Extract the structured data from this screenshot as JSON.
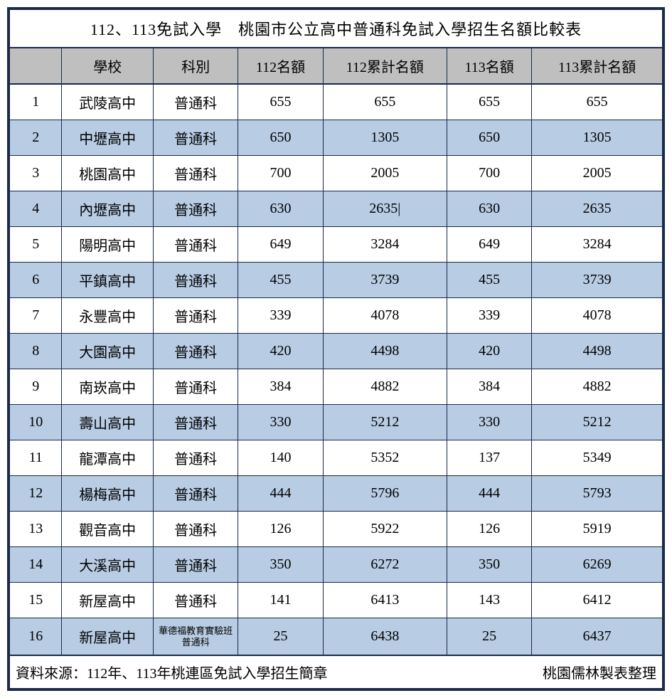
{
  "title": "112、113免試入學　桃園市公立高中普通科免試入學招生名額比較表",
  "columns": [
    "",
    "學校",
    "科別",
    "112名額",
    "112累計名額",
    "113名額",
    "113累計名額"
  ],
  "rows": [
    {
      "n": "1",
      "school": "武陵高中",
      "dept": "普通科",
      "q112": "655",
      "c112": "655",
      "q113": "655",
      "c113": "655"
    },
    {
      "n": "2",
      "school": "中壢高中",
      "dept": "普通科",
      "q112": "650",
      "c112": "1305",
      "q113": "650",
      "c113": "1305"
    },
    {
      "n": "3",
      "school": "桃園高中",
      "dept": "普通科",
      "q112": "700",
      "c112": "2005",
      "q113": "700",
      "c113": "2005"
    },
    {
      "n": "4",
      "school": "內壢高中",
      "dept": "普通科",
      "q112": "630",
      "c112": "2635|",
      "q113": "630",
      "c113": "2635"
    },
    {
      "n": "5",
      "school": "陽明高中",
      "dept": "普通科",
      "q112": "649",
      "c112": "3284",
      "q113": "649",
      "c113": "3284"
    },
    {
      "n": "6",
      "school": "平鎮高中",
      "dept": "普通科",
      "q112": "455",
      "c112": "3739",
      "q113": "455",
      "c113": "3739"
    },
    {
      "n": "7",
      "school": "永豐高中",
      "dept": "普通科",
      "q112": "339",
      "c112": "4078",
      "q113": "339",
      "c113": "4078"
    },
    {
      "n": "8",
      "school": "大園高中",
      "dept": "普通科",
      "q112": "420",
      "c112": "4498",
      "q113": "420",
      "c113": "4498"
    },
    {
      "n": "9",
      "school": "南崁高中",
      "dept": "普通科",
      "q112": "384",
      "c112": "4882",
      "q113": "384",
      "c113": "4882"
    },
    {
      "n": "10",
      "school": "壽山高中",
      "dept": "普通科",
      "q112": "330",
      "c112": "5212",
      "q113": "330",
      "c113": "5212"
    },
    {
      "n": "11",
      "school": "龍潭高中",
      "dept": "普通科",
      "q112": "140",
      "c112": "5352",
      "q113": "137",
      "c113": "5349"
    },
    {
      "n": "12",
      "school": "楊梅高中",
      "dept": "普通科",
      "q112": "444",
      "c112": "5796",
      "q113": "444",
      "c113": "5793"
    },
    {
      "n": "13",
      "school": "觀音高中",
      "dept": "普通科",
      "q112": "126",
      "c112": "5922",
      "q113": "126",
      "c113": "5919"
    },
    {
      "n": "14",
      "school": "大溪高中",
      "dept": "普通科",
      "q112": "350",
      "c112": "6272",
      "q113": "350",
      "c113": "6269"
    },
    {
      "n": "15",
      "school": "新屋高中",
      "dept": "普通科",
      "q112": "141",
      "c112": "6413",
      "q113": "143",
      "c113": "6412"
    },
    {
      "n": "16",
      "school": "新屋高中",
      "dept": "華德福教育實驗班普通科",
      "q112": "25",
      "c112": "6438",
      "q113": "25",
      "c113": "6437",
      "smallDept": true
    }
  ],
  "footer_left": "資料來源：112年、113年桃連區免試入學招生簡章",
  "footer_right": "桃園儒林製表整理",
  "colors": {
    "header_bg": "#bfbfbf",
    "alt_bg": "#b8cce4",
    "border": "#1a2a4a",
    "text": "#000000"
  }
}
